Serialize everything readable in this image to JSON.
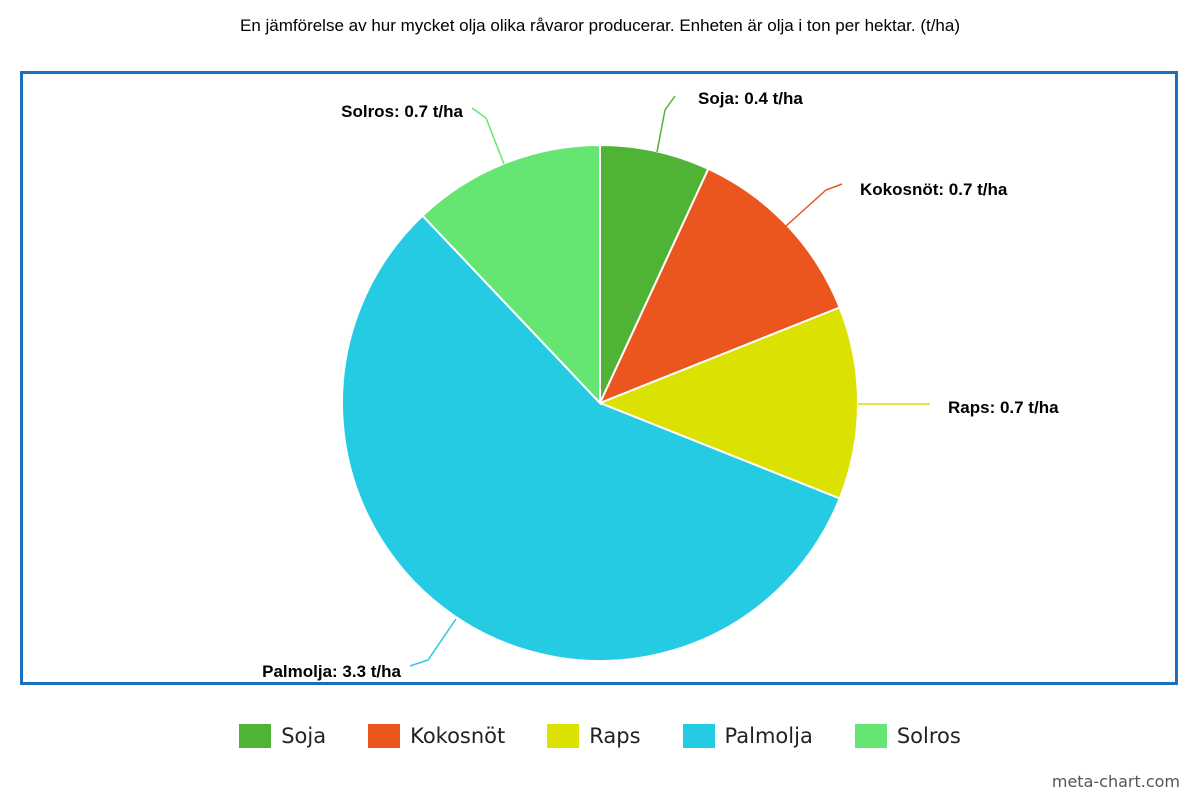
{
  "chart_data": {
    "type": "pie",
    "title": "En jämförelse av hur mycket olja olika råvaror producerar. Enheten är olja i ton per hektar. (t/ha)",
    "categories": [
      "Soja",
      "Kokosnöt",
      "Raps",
      "Palmolja",
      "Solros"
    ],
    "values": [
      0.4,
      0.7,
      0.7,
      3.3,
      0.7
    ],
    "data_labels": [
      "Soja: 0.4 t/ha",
      "Kokosnöt: 0.7 t/ha",
      "Raps: 0.7 t/ha",
      "Palmolja: 3.3 t/ha",
      "Solros: 0.7 t/ha"
    ],
    "colors": [
      "#4fb336",
      "#eb561f",
      "#dbe100",
      "#25cbe3",
      "#65e673"
    ],
    "legend_placement": "bottom"
  },
  "legend": [
    {
      "label": "Soja",
      "color": "#4fb336"
    },
    {
      "label": "Kokosnöt",
      "color": "#eb561f"
    },
    {
      "label": "Raps",
      "color": "#dbe100"
    },
    {
      "label": "Palmolja",
      "color": "#25cbe3"
    },
    {
      "label": "Solros",
      "color": "#65e673"
    }
  ],
  "frame_color": "#1a6fc0",
  "watermark": "meta-chart.com"
}
